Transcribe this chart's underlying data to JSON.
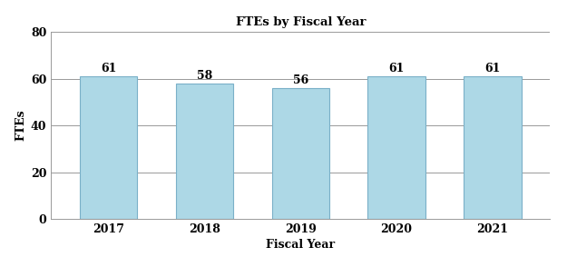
{
  "categories": [
    "2017",
    "2018",
    "2019",
    "2020",
    "2021"
  ],
  "values": [
    61,
    58,
    56,
    61,
    61
  ],
  "bar_color": "#add8e6",
  "bar_edgecolor": "#7ab0c8",
  "title": "FTEs by Fiscal Year",
  "xlabel": "Fiscal Year",
  "ylabel": "FTEs",
  "ylim": [
    0,
    80
  ],
  "yticks": [
    0,
    20,
    40,
    60,
    80
  ],
  "title_fontsize": 9.5,
  "label_fontsize": 9,
  "tick_fontsize": 9,
  "annotation_fontsize": 9,
  "background_color": "#ffffff",
  "grid_color": "#999999",
  "bar_width": 0.6
}
